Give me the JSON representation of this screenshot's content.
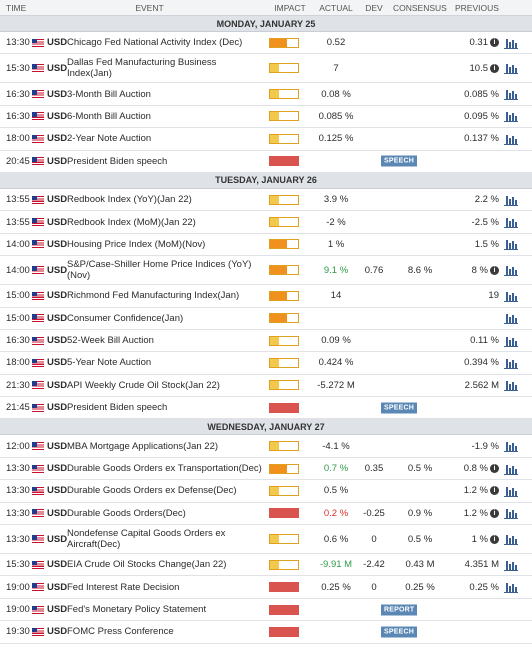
{
  "header": {
    "time": "TIME",
    "event": "EVENT",
    "impact": "IMPACT",
    "actual": "ACTUAL",
    "dev": "DEV",
    "consensus": "CONSENSUS",
    "previous": "PREVIOUS"
  },
  "days": [
    {
      "label": "MONDAY, JANUARY 25",
      "events": [
        {
          "time": "13:30",
          "cur": "USD",
          "name": "Chicago Fed National Activity Index (Dec)",
          "impact": "med",
          "actual": "0.52",
          "dev": "",
          "cons": "",
          "prev": "0.31",
          "info": true,
          "chart": true
        },
        {
          "time": "15:30",
          "cur": "USD",
          "name": "Dallas Fed Manufacturing Business Index(Jan)",
          "impact": "low",
          "actual": "7",
          "dev": "",
          "cons": "",
          "prev": "10.5",
          "info": true,
          "chart": true,
          "tall": true
        },
        {
          "time": "16:30",
          "cur": "USD",
          "name": "3-Month Bill Auction",
          "impact": "low",
          "actual": "0.08 %",
          "dev": "",
          "cons": "",
          "prev": "0.085 %",
          "chart": true
        },
        {
          "time": "16:30",
          "cur": "USD",
          "name": "6-Month Bill Auction",
          "impact": "low",
          "actual": "0.085 %",
          "dev": "",
          "cons": "",
          "prev": "0.095 %",
          "chart": true
        },
        {
          "time": "18:00",
          "cur": "USD",
          "name": "2-Year Note Auction",
          "impact": "low",
          "actual": "0.125 %",
          "dev": "",
          "cons": "",
          "prev": "0.137 %",
          "chart": true
        },
        {
          "time": "20:45",
          "cur": "USD",
          "name": "President Biden speech",
          "impact": "high",
          "actual": "",
          "dev": "",
          "cons": "",
          "prev": "",
          "tag": "SPEECH"
        }
      ]
    },
    {
      "label": "TUESDAY, JANUARY 26",
      "events": [
        {
          "time": "13:55",
          "cur": "USD",
          "name": "Redbook Index (YoY)(Jan 22)",
          "impact": "low",
          "actual": "3.9 %",
          "dev": "",
          "cons": "",
          "prev": "2.2 %",
          "chart": true
        },
        {
          "time": "13:55",
          "cur": "USD",
          "name": "Redbook Index (MoM)(Jan 22)",
          "impact": "low",
          "actual": "-2 %",
          "dev": "",
          "cons": "",
          "prev": "-2.5 %",
          "chart": true
        },
        {
          "time": "14:00",
          "cur": "USD",
          "name": "Housing Price Index (MoM)(Nov)",
          "impact": "med",
          "actual": "1 %",
          "dev": "",
          "cons": "",
          "prev": "1.5 %",
          "chart": true
        },
        {
          "time": "14:00",
          "cur": "USD",
          "name": "S&P/Case-Shiller Home Price Indices (YoY) (Nov)",
          "impact": "med",
          "actual": "9.1 %",
          "actual_class": "pos",
          "dev": "0.76",
          "cons": "8.6 %",
          "prev": "8 %",
          "info": true,
          "chart": true,
          "tall": true
        },
        {
          "time": "15:00",
          "cur": "USD",
          "name": "Richmond Fed Manufacturing Index(Jan)",
          "impact": "med",
          "actual": "14",
          "dev": "",
          "cons": "",
          "prev": "19",
          "chart": true
        },
        {
          "time": "15:00",
          "cur": "USD",
          "name": "Consumer Confidence(Jan)",
          "impact": "med",
          "actual": "",
          "dev": "",
          "cons": "",
          "prev": "",
          "chart": true
        },
        {
          "time": "16:30",
          "cur": "USD",
          "name": "52-Week Bill Auction",
          "impact": "low",
          "actual": "0.09 %",
          "dev": "",
          "cons": "",
          "prev": "0.11 %",
          "chart": true
        },
        {
          "time": "18:00",
          "cur": "USD",
          "name": "5-Year Note Auction",
          "impact": "low",
          "actual": "0.424 %",
          "dev": "",
          "cons": "",
          "prev": "0.394 %",
          "chart": true
        },
        {
          "time": "21:30",
          "cur": "USD",
          "name": "API Weekly Crude Oil Stock(Jan 22)",
          "impact": "low",
          "actual": "-5.272 M",
          "dev": "",
          "cons": "",
          "prev": "2.562 M",
          "chart": true
        },
        {
          "time": "21:45",
          "cur": "USD",
          "name": "President Biden speech",
          "impact": "high",
          "actual": "",
          "dev": "",
          "cons": "",
          "prev": "",
          "tag": "SPEECH"
        }
      ]
    },
    {
      "label": "WEDNESDAY, JANUARY 27",
      "events": [
        {
          "time": "12:00",
          "cur": "USD",
          "name": "MBA Mortgage Applications(Jan 22)",
          "impact": "low",
          "actual": "-4.1 %",
          "dev": "",
          "cons": "",
          "prev": "-1.9 %",
          "chart": true
        },
        {
          "time": "13:30",
          "cur": "USD",
          "name": "Durable Goods Orders ex Transportation(Dec)",
          "impact": "med",
          "actual": "0.7 %",
          "actual_class": "pos",
          "dev": "0.35",
          "cons": "0.5 %",
          "prev": "0.8 %",
          "info": true,
          "chart": true
        },
        {
          "time": "13:30",
          "cur": "USD",
          "name": "Durable Goods Orders ex Defense(Dec)",
          "impact": "low",
          "actual": "0.5 %",
          "dev": "",
          "cons": "",
          "prev": "1.2 %",
          "info": true,
          "chart": true
        },
        {
          "time": "13:30",
          "cur": "USD",
          "name": "Durable Goods Orders(Dec)",
          "impact": "high",
          "actual": "0.2 %",
          "actual_class": "neg",
          "dev": "-0.25",
          "cons": "0.9 %",
          "prev": "1.2 %",
          "info": true,
          "chart": true
        },
        {
          "time": "13:30",
          "cur": "USD",
          "name": "Nondefense Capital Goods Orders ex Aircraft(Dec)",
          "impact": "low",
          "actual": "0.6 %",
          "dev": "0",
          "cons": "0.5 %",
          "prev": "1 %",
          "info": true,
          "chart": true,
          "tall": true
        },
        {
          "time": "15:30",
          "cur": "USD",
          "name": "EIA Crude Oil Stocks Change(Jan 22)",
          "impact": "low",
          "actual": "-9.91 M",
          "actual_class": "pos",
          "dev": "-2.42",
          "cons": "0.43 M",
          "prev": "4.351 M",
          "chart": true
        },
        {
          "time": "19:00",
          "cur": "USD",
          "name": "Fed Interest Rate Decision",
          "impact": "high",
          "actual": "0.25 %",
          "dev": "0",
          "cons": "0.25 %",
          "prev": "0.25 %",
          "chart": true
        },
        {
          "time": "19:00",
          "cur": "USD",
          "name": "Fed's Monetary Policy Statement",
          "impact": "high",
          "actual": "",
          "dev": "",
          "cons": "",
          "prev": "",
          "tag": "REPORT"
        },
        {
          "time": "19:30",
          "cur": "USD",
          "name": "FOMC Press Conference",
          "impact": "high",
          "actual": "",
          "dev": "",
          "cons": "",
          "prev": "",
          "tag": "SPEECH"
        }
      ]
    }
  ]
}
